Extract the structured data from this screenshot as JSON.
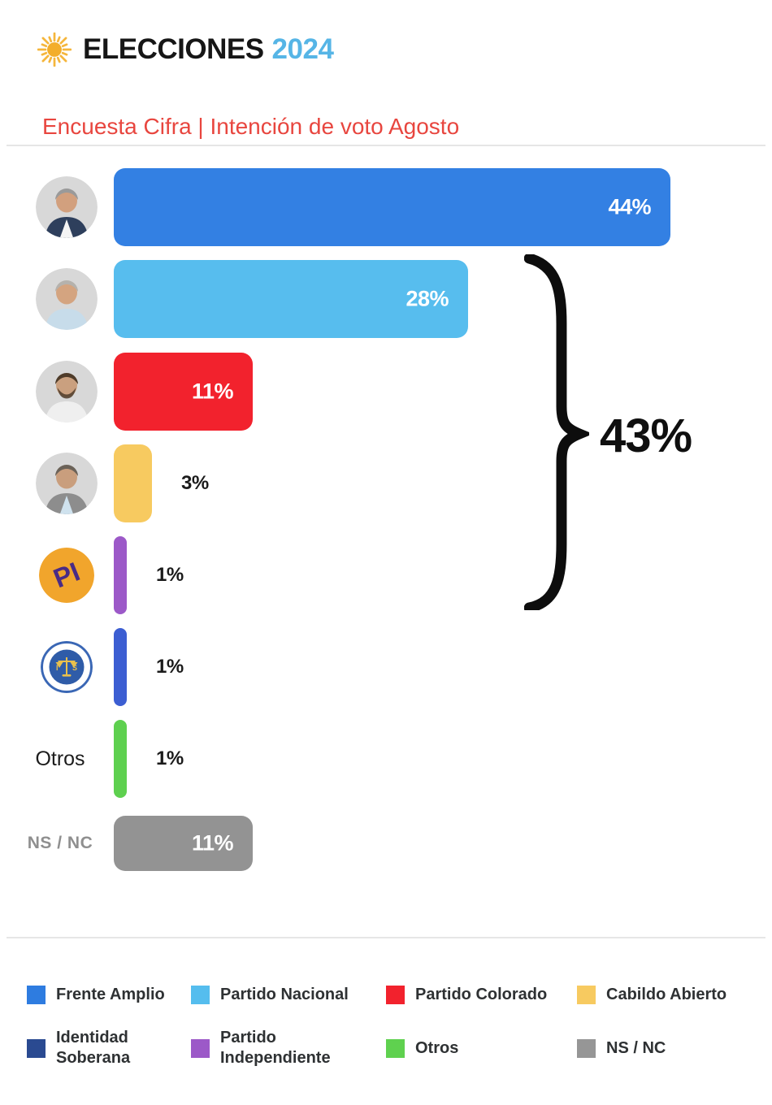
{
  "header": {
    "brand": "ELECCIONES",
    "year": "2024",
    "year_color": "#56b5e6",
    "sun_icon_color": "#f5b63c"
  },
  "subtitle": {
    "text": "Encuesta Cifra | Intención de voto Agosto",
    "color": "#e8463f"
  },
  "chart_data": {
    "type": "bar",
    "orientation": "horizontal",
    "unit": "%",
    "x_max": 44,
    "grid": false,
    "categories": [
      "Frente Amplio",
      "Partido Nacional",
      "Partido Colorado",
      "Cabildo Abierto",
      "Partido Independiente",
      "Identidad Soberana",
      "Otros",
      "NS / NC"
    ],
    "values": [
      44,
      28,
      11,
      3,
      1,
      1,
      1,
      11
    ],
    "rows": [
      {
        "category": "Frente Amplio",
        "value": 44,
        "value_label": "44%",
        "color": "#3380e3",
        "icon": "candidate-photo-1",
        "side_label": null,
        "label_inside": true
      },
      {
        "category": "Partido Nacional",
        "value": 28,
        "value_label": "28%",
        "color": "#57bdee",
        "icon": "candidate-photo-2",
        "side_label": null,
        "label_inside": true
      },
      {
        "category": "Partido Colorado",
        "value": 11,
        "value_label": "11%",
        "color": "#f2222d",
        "icon": "candidate-photo-3",
        "side_label": null,
        "label_inside": true
      },
      {
        "category": "Cabildo Abierto",
        "value": 3,
        "value_label": "3%",
        "color": "#f7ca60",
        "icon": "candidate-photo-4",
        "side_label": null,
        "label_inside": false
      },
      {
        "category": "Partido Independiente",
        "value": 1,
        "value_label": "1%",
        "color": "#9c59c8",
        "icon": "pi-logo",
        "side_label": null,
        "label_inside": false
      },
      {
        "category": "Identidad Soberana",
        "value": 1,
        "value_label": "1%",
        "color": "#3c5ed2",
        "icon": "is-logo",
        "side_label": null,
        "label_inside": false
      },
      {
        "category": "Otros",
        "value": 1,
        "value_label": "1%",
        "color": "#5ed04f",
        "icon": null,
        "side_label": "Otros",
        "side_label_style": "dark",
        "label_inside": false
      },
      {
        "category": "NS / NC",
        "value": 11,
        "value_label": "11%",
        "color": "#939393",
        "icon": null,
        "side_label": "NS / NC",
        "side_label_style": "gray",
        "label_inside": true
      }
    ],
    "annotation": {
      "label": "43%",
      "sum": 43,
      "applies_to": [
        "Partido Nacional",
        "Partido Colorado",
        "Cabildo Abierto",
        "Partido Independiente"
      ]
    }
  },
  "legend": {
    "items": [
      {
        "label": "Frente Amplio",
        "color": "#2e7ce0",
        "two_line": false
      },
      {
        "label": "Partido Nacional",
        "color": "#55bdee",
        "two_line": false
      },
      {
        "label": "Partido Colorado",
        "color": "#f2222d",
        "two_line": false
      },
      {
        "label": "Cabildo Abierto",
        "color": "#f7ca60",
        "two_line": false
      },
      {
        "label": "Identidad Soberana",
        "color": "#2a4a91",
        "two_line": true
      },
      {
        "label": "Partido Independiente",
        "color": "#9c59c8",
        "two_line": true
      },
      {
        "label": "Otros",
        "color": "#5fd14f",
        "two_line": false
      },
      {
        "label": "NS / NC",
        "color": "#969696",
        "two_line": false
      }
    ]
  }
}
